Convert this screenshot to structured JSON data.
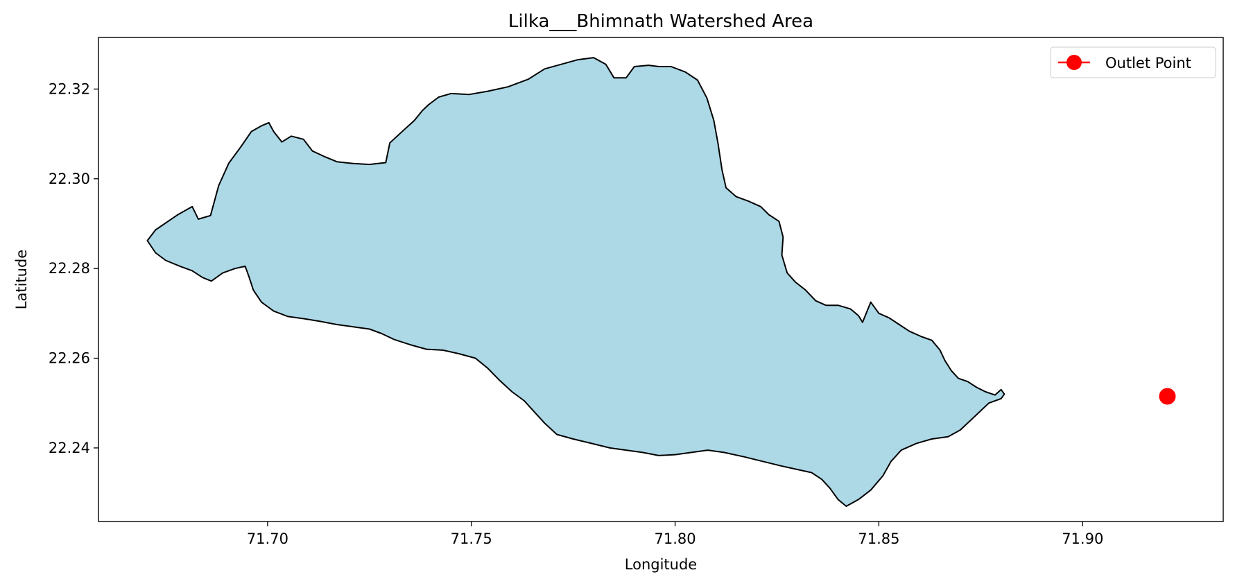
{
  "chart_data": {
    "type": "map",
    "title": "Lilka___Bhimnath Watershed Area",
    "xlabel": "Longitude",
    "ylabel": "Latitude",
    "xlim": [
      71.6585,
      71.9345
    ],
    "ylim": [
      22.2236,
      22.3315
    ],
    "xticks": [
      71.7,
      71.75,
      71.8,
      71.85,
      71.9
    ],
    "xtick_labels": [
      "71.70",
      "71.75",
      "71.80",
      "71.85",
      "71.90"
    ],
    "yticks": [
      22.24,
      22.26,
      22.28,
      22.3,
      22.32
    ],
    "ytick_labels": [
      "22.24",
      "22.26",
      "22.28",
      "22.30",
      "22.32"
    ],
    "watershed": {
      "fill": "#add8e6",
      "edge": "#000000",
      "boundary": [
        [
          71.6705,
          22.2862
        ],
        [
          71.6725,
          22.2886
        ],
        [
          71.678,
          22.292
        ],
        [
          71.6815,
          22.2938
        ],
        [
          71.683,
          22.291
        ],
        [
          71.686,
          22.2918
        ],
        [
          71.688,
          22.2985
        ],
        [
          71.6905,
          22.3035
        ],
        [
          71.6935,
          22.3072
        ],
        [
          71.696,
          22.3105
        ],
        [
          71.6985,
          22.3118
        ],
        [
          71.7003,
          22.3125
        ],
        [
          71.7015,
          22.3105
        ],
        [
          71.7035,
          22.3082
        ],
        [
          71.7058,
          22.3095
        ],
        [
          71.7088,
          22.3088
        ],
        [
          71.711,
          22.3062
        ],
        [
          71.7138,
          22.305
        ],
        [
          71.717,
          22.3038
        ],
        [
          71.721,
          22.3034
        ],
        [
          71.725,
          22.3032
        ],
        [
          71.729,
          22.3036
        ],
        [
          71.73,
          22.308
        ],
        [
          71.733,
          22.3105
        ],
        [
          71.736,
          22.313
        ],
        [
          71.738,
          22.3152
        ],
        [
          71.7395,
          22.3165
        ],
        [
          71.742,
          22.3182
        ],
        [
          71.745,
          22.319
        ],
        [
          71.7495,
          22.3188
        ],
        [
          71.754,
          22.3195
        ],
        [
          71.759,
          22.3205
        ],
        [
          71.764,
          22.3222
        ],
        [
          71.768,
          22.3245
        ],
        [
          71.772,
          22.3255
        ],
        [
          71.776,
          22.3265
        ],
        [
          71.78,
          22.327
        ],
        [
          71.783,
          22.3255
        ],
        [
          71.785,
          22.3225
        ],
        [
          71.788,
          22.3225
        ],
        [
          71.79,
          22.325
        ],
        [
          71.7935,
          22.3253
        ],
        [
          71.796,
          22.325
        ],
        [
          71.799,
          22.325
        ],
        [
          71.8025,
          22.3238
        ],
        [
          71.8055,
          22.322
        ],
        [
          71.8078,
          22.318
        ],
        [
          71.8095,
          22.313
        ],
        [
          71.8105,
          22.308
        ],
        [
          71.8115,
          22.302
        ],
        [
          71.8125,
          22.298
        ],
        [
          71.815,
          22.296
        ],
        [
          71.818,
          22.295
        ],
        [
          71.821,
          22.2938
        ],
        [
          71.823,
          22.292
        ],
        [
          71.8255,
          22.2905
        ],
        [
          71.8265,
          22.287
        ],
        [
          71.8262,
          22.283
        ],
        [
          71.8275,
          22.279
        ],
        [
          71.8295,
          22.277
        ],
        [
          71.832,
          22.2752
        ],
        [
          71.8345,
          22.2728
        ],
        [
          71.837,
          22.2718
        ],
        [
          71.84,
          22.2718
        ],
        [
          71.843,
          22.271
        ],
        [
          71.845,
          22.2695
        ],
        [
          71.846,
          22.268
        ],
        [
          71.848,
          22.2725
        ],
        [
          71.85,
          22.27
        ],
        [
          71.8525,
          22.269
        ],
        [
          71.855,
          22.2675
        ],
        [
          71.8575,
          22.266
        ],
        [
          71.8605,
          22.2648
        ],
        [
          71.863,
          22.264
        ],
        [
          71.865,
          22.2618
        ],
        [
          71.8662,
          22.2595
        ],
        [
          71.8678,
          22.2572
        ],
        [
          71.8695,
          22.2555
        ],
        [
          71.8718,
          22.2548
        ],
        [
          71.874,
          22.2535
        ],
        [
          71.8762,
          22.2525
        ],
        [
          71.8785,
          22.2518
        ],
        [
          71.88,
          22.253
        ],
        [
          71.8808,
          22.252
        ],
        [
          71.88,
          22.251
        ],
        [
          71.877,
          22.25
        ],
        [
          71.8735,
          22.247
        ],
        [
          71.87,
          22.244
        ],
        [
          71.867,
          22.2425
        ],
        [
          71.863,
          22.242
        ],
        [
          71.8592,
          22.241
        ],
        [
          71.8555,
          22.2395
        ],
        [
          71.853,
          22.237
        ],
        [
          71.851,
          22.2338
        ],
        [
          71.848,
          22.2306
        ],
        [
          71.845,
          22.2285
        ],
        [
          71.842,
          22.227
        ],
        [
          71.84,
          22.2285
        ],
        [
          71.838,
          22.231
        ],
        [
          71.836,
          22.233
        ],
        [
          71.8335,
          22.2345
        ],
        [
          71.83,
          22.2352
        ],
        [
          71.826,
          22.236
        ],
        [
          71.8215,
          22.237
        ],
        [
          71.817,
          22.238
        ],
        [
          71.812,
          22.239
        ],
        [
          71.808,
          22.2395
        ],
        [
          71.804,
          22.239
        ],
        [
          71.8,
          22.2385
        ],
        [
          71.796,
          22.2383
        ],
        [
          71.792,
          22.239
        ],
        [
          71.788,
          22.2395
        ],
        [
          71.784,
          22.24
        ],
        [
          71.7795,
          22.241
        ],
        [
          71.775,
          22.242
        ],
        [
          71.771,
          22.243
        ],
        [
          71.768,
          22.2455
        ],
        [
          71.7655,
          22.248
        ],
        [
          71.763,
          22.2505
        ],
        [
          71.76,
          22.2525
        ],
        [
          71.757,
          22.255
        ],
        [
          71.754,
          22.2578
        ],
        [
          71.751,
          22.26
        ],
        [
          71.747,
          22.261
        ],
        [
          71.743,
          22.2618
        ],
        [
          71.739,
          22.262
        ],
        [
          71.735,
          22.263
        ],
        [
          71.731,
          22.2642
        ],
        [
          71.728,
          22.2655
        ],
        [
          71.725,
          22.2665
        ],
        [
          71.721,
          22.267
        ],
        [
          71.717,
          22.2675
        ],
        [
          71.713,
          22.2682
        ],
        [
          71.709,
          22.2688
        ],
        [
          71.705,
          22.2693
        ],
        [
          71.7015,
          22.2705
        ],
        [
          71.6985,
          22.2725
        ],
        [
          71.6965,
          22.2752
        ],
        [
          71.6955,
          22.278
        ],
        [
          71.6945,
          22.2805
        ],
        [
          71.692,
          22.28
        ],
        [
          71.689,
          22.279
        ],
        [
          71.6862,
          22.2772
        ],
        [
          71.684,
          22.278
        ],
        [
          71.6815,
          22.2795
        ],
        [
          71.6785,
          22.2805
        ],
        [
          71.675,
          22.2818
        ],
        [
          71.6725,
          22.2835
        ]
      ]
    },
    "outlet": {
      "name": "Outlet Point",
      "lon": 71.9208,
      "lat": 22.2515,
      "color": "#ff0000"
    },
    "legend": {
      "position": "top-right",
      "entries": [
        "Outlet Point"
      ]
    }
  }
}
